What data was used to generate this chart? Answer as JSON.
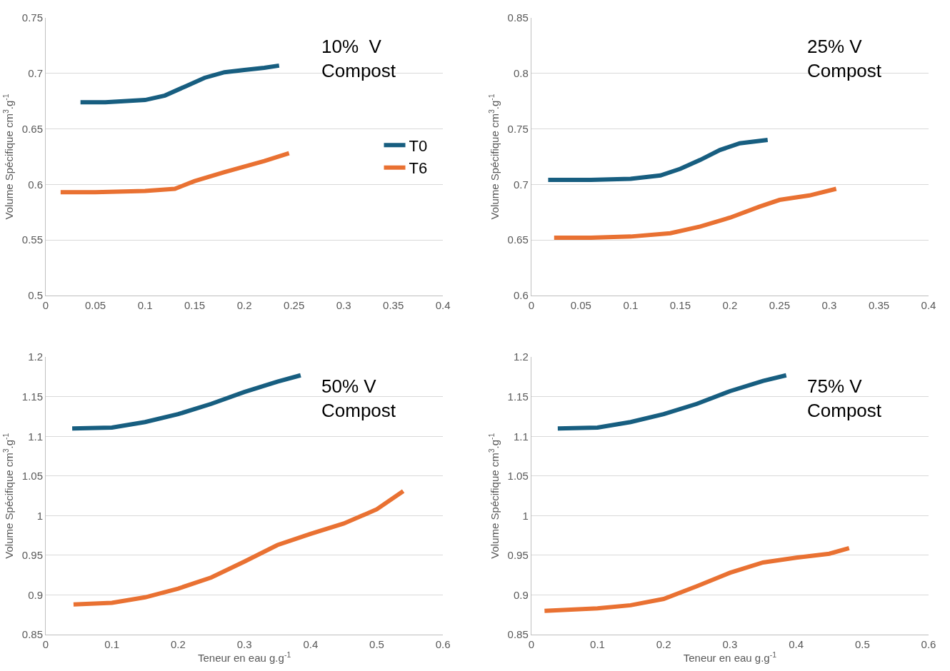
{
  "chart_data": [
    {
      "type": "line",
      "annotations": [
        "10%  V\nCompost"
      ],
      "ylabel": "Volume Spécifique cm$^{3}$.g$^{-1}$",
      "xlim": [
        0,
        0.4
      ],
      "xticks": [
        0,
        0.05,
        0.1,
        0.15,
        0.2,
        0.25,
        0.3,
        0.35,
        0.4
      ],
      "ylim": [
        0.5,
        0.75
      ],
      "yticks": [
        0.5,
        0.55,
        0.6,
        0.65,
        0.7,
        0.75
      ],
      "grid": "y",
      "legend": "right",
      "marker": "none",
      "line_style": "solid",
      "series": [
        {
          "name": "T0",
          "color": "#175e80",
          "x": [
            0.035,
            0.06,
            0.1,
            0.12,
            0.14,
            0.16,
            0.18,
            0.2,
            0.22,
            0.235
          ],
          "values": [
            0.674,
            0.674,
            0.676,
            0.68,
            0.688,
            0.696,
            0.701,
            0.703,
            0.705,
            0.707
          ]
        },
        {
          "name": "T6",
          "color": "#e97132",
          "x": [
            0.015,
            0.05,
            0.1,
            0.13,
            0.15,
            0.18,
            0.2,
            0.22,
            0.245
          ],
          "values": [
            0.593,
            0.593,
            0.594,
            0.596,
            0.603,
            0.611,
            0.616,
            0.621,
            0.628
          ]
        }
      ]
    },
    {
      "type": "line",
      "annotations": [
        "25% V\nCompost"
      ],
      "ylabel": "Volume Spécifique cm$^{3}$.g$^{-1}$",
      "xlim": [
        0,
        0.4
      ],
      "xticks": [
        0,
        0.05,
        0.1,
        0.15,
        0.2,
        0.25,
        0.3,
        0.35,
        0.4
      ],
      "ylim": [
        0.6,
        0.85
      ],
      "yticks": [
        0.6,
        0.65,
        0.7,
        0.75,
        0.8,
        0.85
      ],
      "grid": "y",
      "marker": "none",
      "line_style": "solid",
      "series": [
        {
          "color": "#175e80",
          "x": [
            0.017,
            0.06,
            0.1,
            0.13,
            0.15,
            0.17,
            0.19,
            0.21,
            0.238
          ],
          "values": [
            0.704,
            0.704,
            0.705,
            0.708,
            0.714,
            0.722,
            0.731,
            0.737,
            0.74
          ]
        },
        {
          "color": "#e97132",
          "x": [
            0.023,
            0.06,
            0.1,
            0.14,
            0.17,
            0.2,
            0.23,
            0.25,
            0.28,
            0.307
          ],
          "values": [
            0.652,
            0.652,
            0.653,
            0.656,
            0.662,
            0.67,
            0.68,
            0.686,
            0.69,
            0.696
          ]
        }
      ]
    },
    {
      "type": "line",
      "annotations": [
        "50% V\nCompost"
      ],
      "xlabel": "Teneur en eau g.g$^{-1}$",
      "ylabel": "Volume Spécifique cm$^{3}$.g$^{-1}$",
      "xlim": [
        0,
        0.6
      ],
      "xticks": [
        0,
        0.1,
        0.2,
        0.3,
        0.4,
        0.5,
        0.6
      ],
      "ylim": [
        0.85,
        1.2
      ],
      "yticks": [
        0.85,
        0.9,
        0.95,
        1,
        1.05,
        1.1,
        1.15,
        1.2
      ],
      "grid": "y",
      "marker": "none",
      "line_style": "solid",
      "series": [
        {
          "color": "#175e80",
          "x": [
            0.04,
            0.1,
            0.15,
            0.2,
            0.25,
            0.3,
            0.35,
            0.385
          ],
          "values": [
            1.11,
            1.111,
            1.118,
            1.128,
            1.141,
            1.156,
            1.169,
            1.177
          ]
        },
        {
          "color": "#e97132",
          "x": [
            0.042,
            0.1,
            0.15,
            0.2,
            0.25,
            0.3,
            0.35,
            0.4,
            0.45,
            0.5,
            0.54
          ],
          "values": [
            0.888,
            0.89,
            0.897,
            0.908,
            0.922,
            0.942,
            0.963,
            0.977,
            0.99,
            1.008,
            1.031
          ]
        }
      ]
    },
    {
      "type": "line",
      "annotations": [
        "75% V\nCompost"
      ],
      "xlabel": "Teneur en eau g.g$^{-1}$",
      "ylabel": "Volume Spécifique cm$^{3}$.g$^{-1}$",
      "xlim": [
        0,
        0.6
      ],
      "xticks": [
        0,
        0.1,
        0.2,
        0.3,
        0.4,
        0.5,
        0.6
      ],
      "ylim": [
        0.85,
        1.2
      ],
      "yticks": [
        0.85,
        0.9,
        0.95,
        1,
        1.05,
        1.1,
        1.15,
        1.2
      ],
      "grid": "y",
      "marker": "none",
      "line_style": "solid",
      "series": [
        {
          "color": "#175e80",
          "x": [
            0.04,
            0.1,
            0.15,
            0.2,
            0.25,
            0.3,
            0.35,
            0.385
          ],
          "values": [
            1.11,
            1.111,
            1.118,
            1.128,
            1.141,
            1.157,
            1.17,
            1.177
          ]
        },
        {
          "color": "#e97132",
          "x": [
            0.02,
            0.1,
            0.15,
            0.2,
            0.25,
            0.3,
            0.35,
            0.4,
            0.45,
            0.48
          ],
          "values": [
            0.88,
            0.883,
            0.887,
            0.895,
            0.911,
            0.928,
            0.941,
            0.947,
            0.952,
            0.959
          ]
        }
      ]
    }
  ]
}
